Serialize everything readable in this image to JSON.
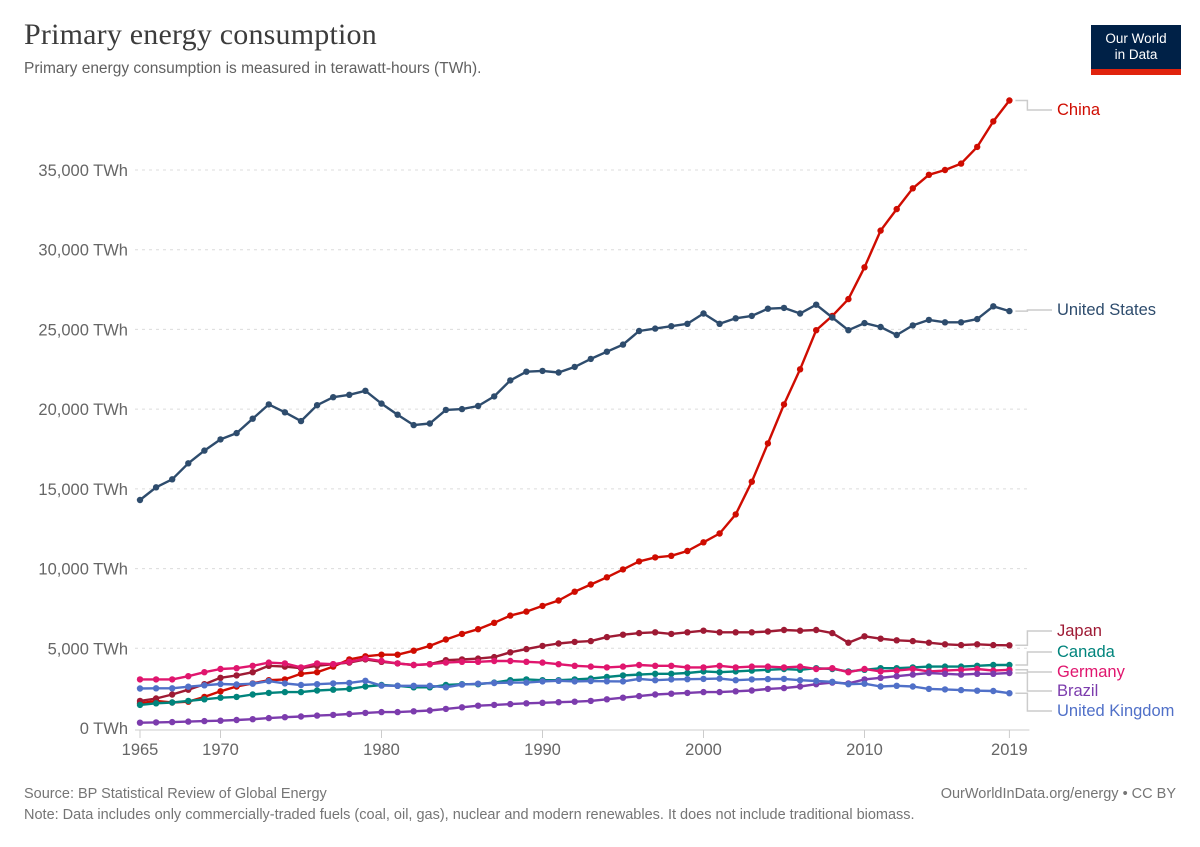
{
  "header": {
    "title": "Primary energy consumption",
    "subtitle": "Primary energy consumption is measured in terawatt-hours (TWh)."
  },
  "logo": {
    "line1": "Our World",
    "line2": "in Data",
    "bg": "#002147",
    "accent": "#e0230d"
  },
  "footer": {
    "source": "Source: BP Statistical Review of Global Energy",
    "note": "Note: Data includes only commercially-traded fuels (coal, oil, gas), nuclear and modern renewables. It does not include traditional biomass.",
    "link": "OurWorldInData.org/energy • CC BY"
  },
  "chart_data": {
    "type": "line",
    "title": "Primary energy consumption",
    "unit": "TWh",
    "xlabel": "",
    "ylabel": "TWh",
    "xlim": [
      1965,
      2019
    ],
    "ylim": [
      0,
      39500
    ],
    "grid": "dashed-horizontal",
    "legend_position": "right-of-line-ends",
    "x_ticks": [
      1965,
      1970,
      1980,
      1990,
      2000,
      2010,
      2019
    ],
    "y_ticks": [
      0,
      5000,
      10000,
      15000,
      20000,
      25000,
      30000,
      35000
    ],
    "x": [
      1965,
      1966,
      1967,
      1968,
      1969,
      1970,
      1971,
      1972,
      1973,
      1974,
      1975,
      1976,
      1977,
      1978,
      1979,
      1980,
      1981,
      1982,
      1983,
      1984,
      1985,
      1986,
      1987,
      1988,
      1989,
      1990,
      1991,
      1992,
      1993,
      1994,
      1995,
      1996,
      1997,
      1998,
      1999,
      2000,
      2001,
      2002,
      2003,
      2004,
      2005,
      2006,
      2007,
      2008,
      2009,
      2010,
      2011,
      2012,
      2013,
      2014,
      2015,
      2016,
      2017,
      2018,
      2019
    ],
    "series": [
      {
        "name": "China",
        "color": "#cf0c01",
        "label_y": 110,
        "values": [
          1550,
          1700,
          1600,
          1650,
          1950,
          2300,
          2600,
          2800,
          3000,
          3050,
          3400,
          3500,
          3850,
          4300,
          4500,
          4600,
          4600,
          4850,
          5150,
          5550,
          5900,
          6200,
          6600,
          7050,
          7300,
          7660,
          8000,
          8550,
          9000,
          9450,
          9950,
          10450,
          10700,
          10800,
          11100,
          11650,
          12200,
          13400,
          15450,
          17850,
          20300,
          22500,
          24950,
          25850,
          26900,
          28900,
          31200,
          32550,
          33850,
          34700,
          35000,
          35400,
          36450,
          38050,
          39360
        ]
      },
      {
        "name": "United States",
        "color": "#2e4c6d",
        "label_y": 310,
        "values": [
          14300,
          15100,
          15600,
          16600,
          17400,
          18100,
          18500,
          19400,
          20300,
          19800,
          19250,
          20250,
          20750,
          20900,
          21150,
          20350,
          19650,
          19000,
          19100,
          19950,
          20000,
          20200,
          20800,
          21800,
          22350,
          22400,
          22300,
          22650,
          23150,
          23600,
          24050,
          24900,
          25050,
          25200,
          25350,
          26000,
          25350,
          25700,
          25850,
          26300,
          26350,
          26000,
          26550,
          25750,
          24950,
          25400,
          25150,
          24650,
          25250,
          25600,
          25450,
          25450,
          25650,
          26450,
          26150
        ]
      },
      {
        "name": "Japan",
        "color": "#9e1a34",
        "label_y": 631,
        "values": [
          1700,
          1850,
          2100,
          2400,
          2750,
          3150,
          3300,
          3500,
          3900,
          3850,
          3750,
          3900,
          4000,
          4100,
          4300,
          4150,
          4050,
          3950,
          4000,
          4250,
          4300,
          4350,
          4450,
          4750,
          4950,
          5150,
          5300,
          5400,
          5450,
          5700,
          5850,
          5950,
          6000,
          5900,
          6000,
          6100,
          6000,
          6000,
          6000,
          6050,
          6150,
          6100,
          6150,
          5950,
          5350,
          5750,
          5600,
          5500,
          5450,
          5350,
          5250,
          5200,
          5250,
          5200,
          5190
        ]
      },
      {
        "name": "Canada",
        "color": "#00847c",
        "label_y": 652,
        "values": [
          1450,
          1550,
          1600,
          1700,
          1800,
          1900,
          1950,
          2100,
          2200,
          2250,
          2250,
          2350,
          2400,
          2450,
          2600,
          2700,
          2650,
          2550,
          2550,
          2700,
          2750,
          2750,
          2850,
          3000,
          3050,
          3000,
          3000,
          3050,
          3100,
          3200,
          3300,
          3350,
          3400,
          3400,
          3450,
          3550,
          3500,
          3550,
          3600,
          3650,
          3700,
          3650,
          3750,
          3700,
          3550,
          3650,
          3750,
          3750,
          3800,
          3850,
          3850,
          3850,
          3900,
          3950,
          3950
        ]
      },
      {
        "name": "Germany",
        "color": "#e0166e",
        "label_y": 672,
        "values": [
          3050,
          3050,
          3050,
          3250,
          3500,
          3700,
          3750,
          3900,
          4100,
          4050,
          3800,
          4050,
          4000,
          4150,
          4350,
          4200,
          4050,
          3950,
          4000,
          4100,
          4150,
          4150,
          4200,
          4200,
          4150,
          4100,
          4000,
          3900,
          3850,
          3800,
          3850,
          3950,
          3900,
          3900,
          3800,
          3800,
          3900,
          3800,
          3850,
          3850,
          3800,
          3850,
          3700,
          3750,
          3500,
          3700,
          3550,
          3600,
          3700,
          3550,
          3600,
          3650,
          3700,
          3600,
          3650
        ]
      },
      {
        "name": "Brazil",
        "color": "#7c3cad",
        "label_y": 691,
        "values": [
          330,
          350,
          370,
          400,
          430,
          460,
          500,
          550,
          620,
          680,
          720,
          780,
          820,
          880,
          950,
          1000,
          1000,
          1050,
          1100,
          1200,
          1300,
          1400,
          1450,
          1500,
          1550,
          1580,
          1620,
          1650,
          1700,
          1800,
          1900,
          2000,
          2100,
          2150,
          2200,
          2250,
          2250,
          2300,
          2350,
          2450,
          2500,
          2600,
          2750,
          2850,
          2800,
          3050,
          3150,
          3250,
          3350,
          3450,
          3400,
          3350,
          3400,
          3400,
          3450
        ]
      },
      {
        "name": "United Kingdom",
        "color": "#5070c8",
        "label_y": 711,
        "values": [
          2480,
          2490,
          2490,
          2590,
          2680,
          2760,
          2730,
          2780,
          2940,
          2800,
          2700,
          2750,
          2800,
          2830,
          2960,
          2660,
          2650,
          2650,
          2650,
          2550,
          2720,
          2780,
          2820,
          2850,
          2850,
          2920,
          2960,
          2920,
          2950,
          2930,
          2920,
          3080,
          3000,
          3050,
          3060,
          3080,
          3100,
          3000,
          3050,
          3070,
          3080,
          3000,
          2950,
          2900,
          2750,
          2780,
          2600,
          2650,
          2600,
          2450,
          2420,
          2380,
          2340,
          2320,
          2180
        ]
      }
    ]
  }
}
